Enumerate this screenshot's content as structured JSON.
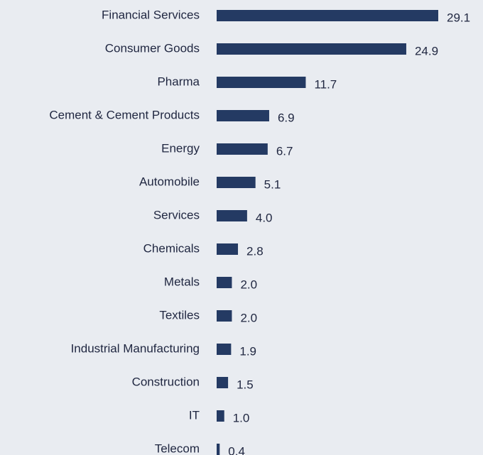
{
  "chart_data": {
    "type": "bar",
    "orientation": "horizontal",
    "color": "#243a63",
    "categories": [
      "Financial Services",
      "Consumer Goods",
      "Pharma",
      "Cement & Cement Products",
      "Energy",
      "Automobile",
      "Services",
      "Chemicals",
      "Metals",
      "Textiles",
      "Industrial Manufacturing",
      "Construction",
      "IT",
      "Telecom"
    ],
    "values": [
      29.1,
      24.9,
      11.7,
      6.9,
      6.7,
      5.1,
      4.0,
      2.8,
      2.0,
      2.0,
      1.9,
      1.5,
      1.0,
      0.4
    ],
    "value_labels": [
      "29.1",
      "24.9",
      "11.7",
      "6.9",
      "6.7",
      "5.1",
      "4.0",
      "2.8",
      "2.0",
      "2.0",
      "1.9",
      "1.5",
      "1.0",
      "0.4"
    ]
  }
}
